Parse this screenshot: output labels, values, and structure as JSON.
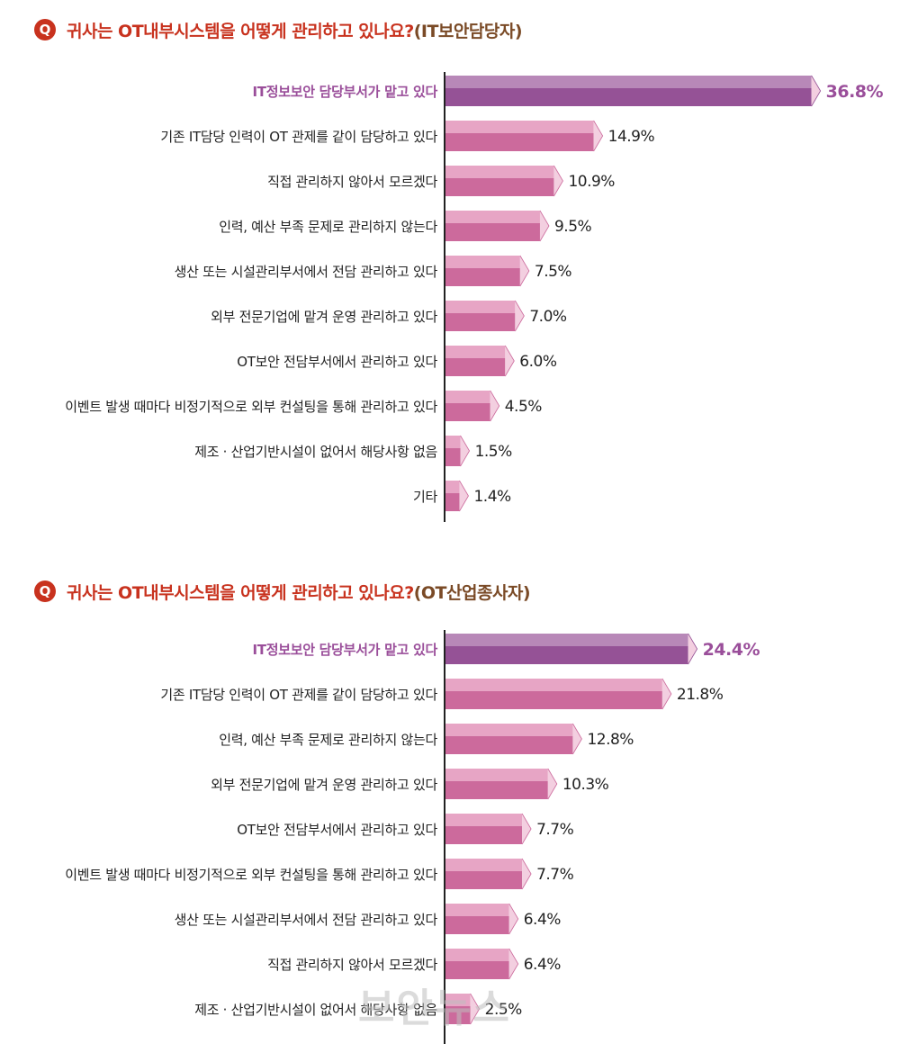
{
  "charts": [
    {
      "q_mark": "Q",
      "title": "귀사는 OT내부시스템을 어떻게 관리하고 있나요?",
      "title_suffix": "(IT보안담당자)",
      "chart_data": {
        "type": "bar",
        "orientation": "horizontal",
        "categories": [
          "IT정보보안 담당부서가 맡고 있다",
          "기존 IT담당 인력이 OT 관제를 같이 담당하고 있다",
          "직접 관리하지 않아서 모르겠다",
          "인력, 예산 부족 문제로 관리하지 않는다",
          "생산 또는 시설관리부서에서 전담 관리하고 있다",
          "외부 전문기업에 맡겨 운영 관리하고 있다",
          "OT보안 전담부서에서 관리하고 있다",
          "이벤트 발생 때마다 비정기적으로 외부 컨설팅을 통해 관리하고 있다",
          "제조 · 산업기반시설이 없어서 해당사항 없음",
          "기타"
        ],
        "values": [
          36.8,
          14.9,
          10.9,
          9.5,
          7.5,
          7.0,
          6.0,
          4.5,
          1.5,
          1.4
        ],
        "labels": [
          "36.8%",
          "14.9%",
          "10.9%",
          "9.5%",
          "7.5%",
          "7.0%",
          "6.0%",
          "4.5%",
          "1.5%",
          "1.4%"
        ],
        "unit": "%",
        "highlight_index": 0,
        "colors": {
          "highlight": "#955296",
          "highlight_top": "#b888b8",
          "bar": "#cc6a9c",
          "bar_top": "#e7a5c5",
          "face": "#f3cfe0"
        }
      }
    },
    {
      "q_mark": "Q",
      "title": "귀사는 OT내부시스템을 어떻게 관리하고 있나요?",
      "title_suffix": "(OT산업종사자)",
      "chart_data": {
        "type": "bar",
        "orientation": "horizontal",
        "categories": [
          "IT정보보안 담당부서가 맡고 있다",
          "기존 IT담당 인력이 OT 관제를 같이 담당하고 있다",
          "인력, 예산 부족 문제로 관리하지 않는다",
          "외부 전문기업에 맡겨 운영 관리하고 있다",
          "OT보안 전담부서에서 관리하고 있다",
          "이벤트 발생 때마다 비정기적으로 외부 컨설팅을 통해 관리하고 있다",
          "생산 또는 시설관리부서에서 전담 관리하고 있다",
          "직접 관리하지 않아서 모르겠다",
          "제조 · 산업기반시설이 없어서 해당사항 없음"
        ],
        "values": [
          24.4,
          21.8,
          12.8,
          10.3,
          7.7,
          7.7,
          6.4,
          6.4,
          2.5
        ],
        "labels": [
          "24.4%",
          "21.8%",
          "12.8%",
          "10.3%",
          "7.7%",
          "7.7%",
          "6.4%",
          "6.4%",
          "2.5%"
        ],
        "unit": "%",
        "highlight_index": 0,
        "colors": {
          "highlight": "#955296",
          "highlight_top": "#b888b8",
          "bar": "#cc6a9c",
          "bar_top": "#e7a5c5",
          "face": "#f3cfe0"
        }
      }
    }
  ],
  "watermark": "보안뉴스"
}
